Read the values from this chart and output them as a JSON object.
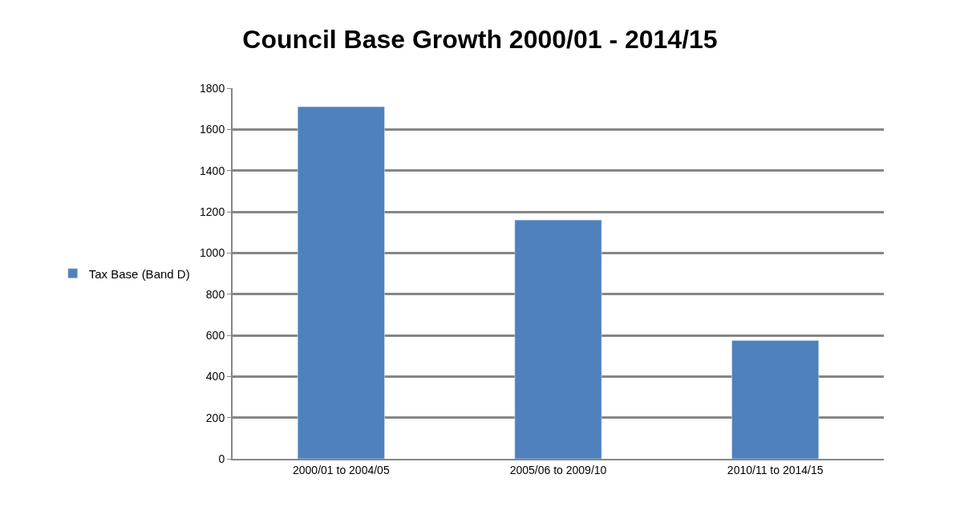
{
  "chart_data": {
    "type": "bar",
    "title": "Council Base Growth 2000/01 - 2014/15",
    "categories": [
      "2000/01 to 2004/05",
      "2005/06 to 2009/10",
      "2010/11 to 2014/15"
    ],
    "series": [
      {
        "name": "Tax Base (Band D)",
        "color": "#4f81bd",
        "values": [
          1710,
          1160,
          575
        ]
      }
    ],
    "ylim": [
      0,
      1800
    ],
    "yticks": [
      0,
      200,
      400,
      600,
      800,
      1000,
      1200,
      1400,
      1600,
      1800
    ],
    "grid": "y",
    "legend": "left"
  }
}
